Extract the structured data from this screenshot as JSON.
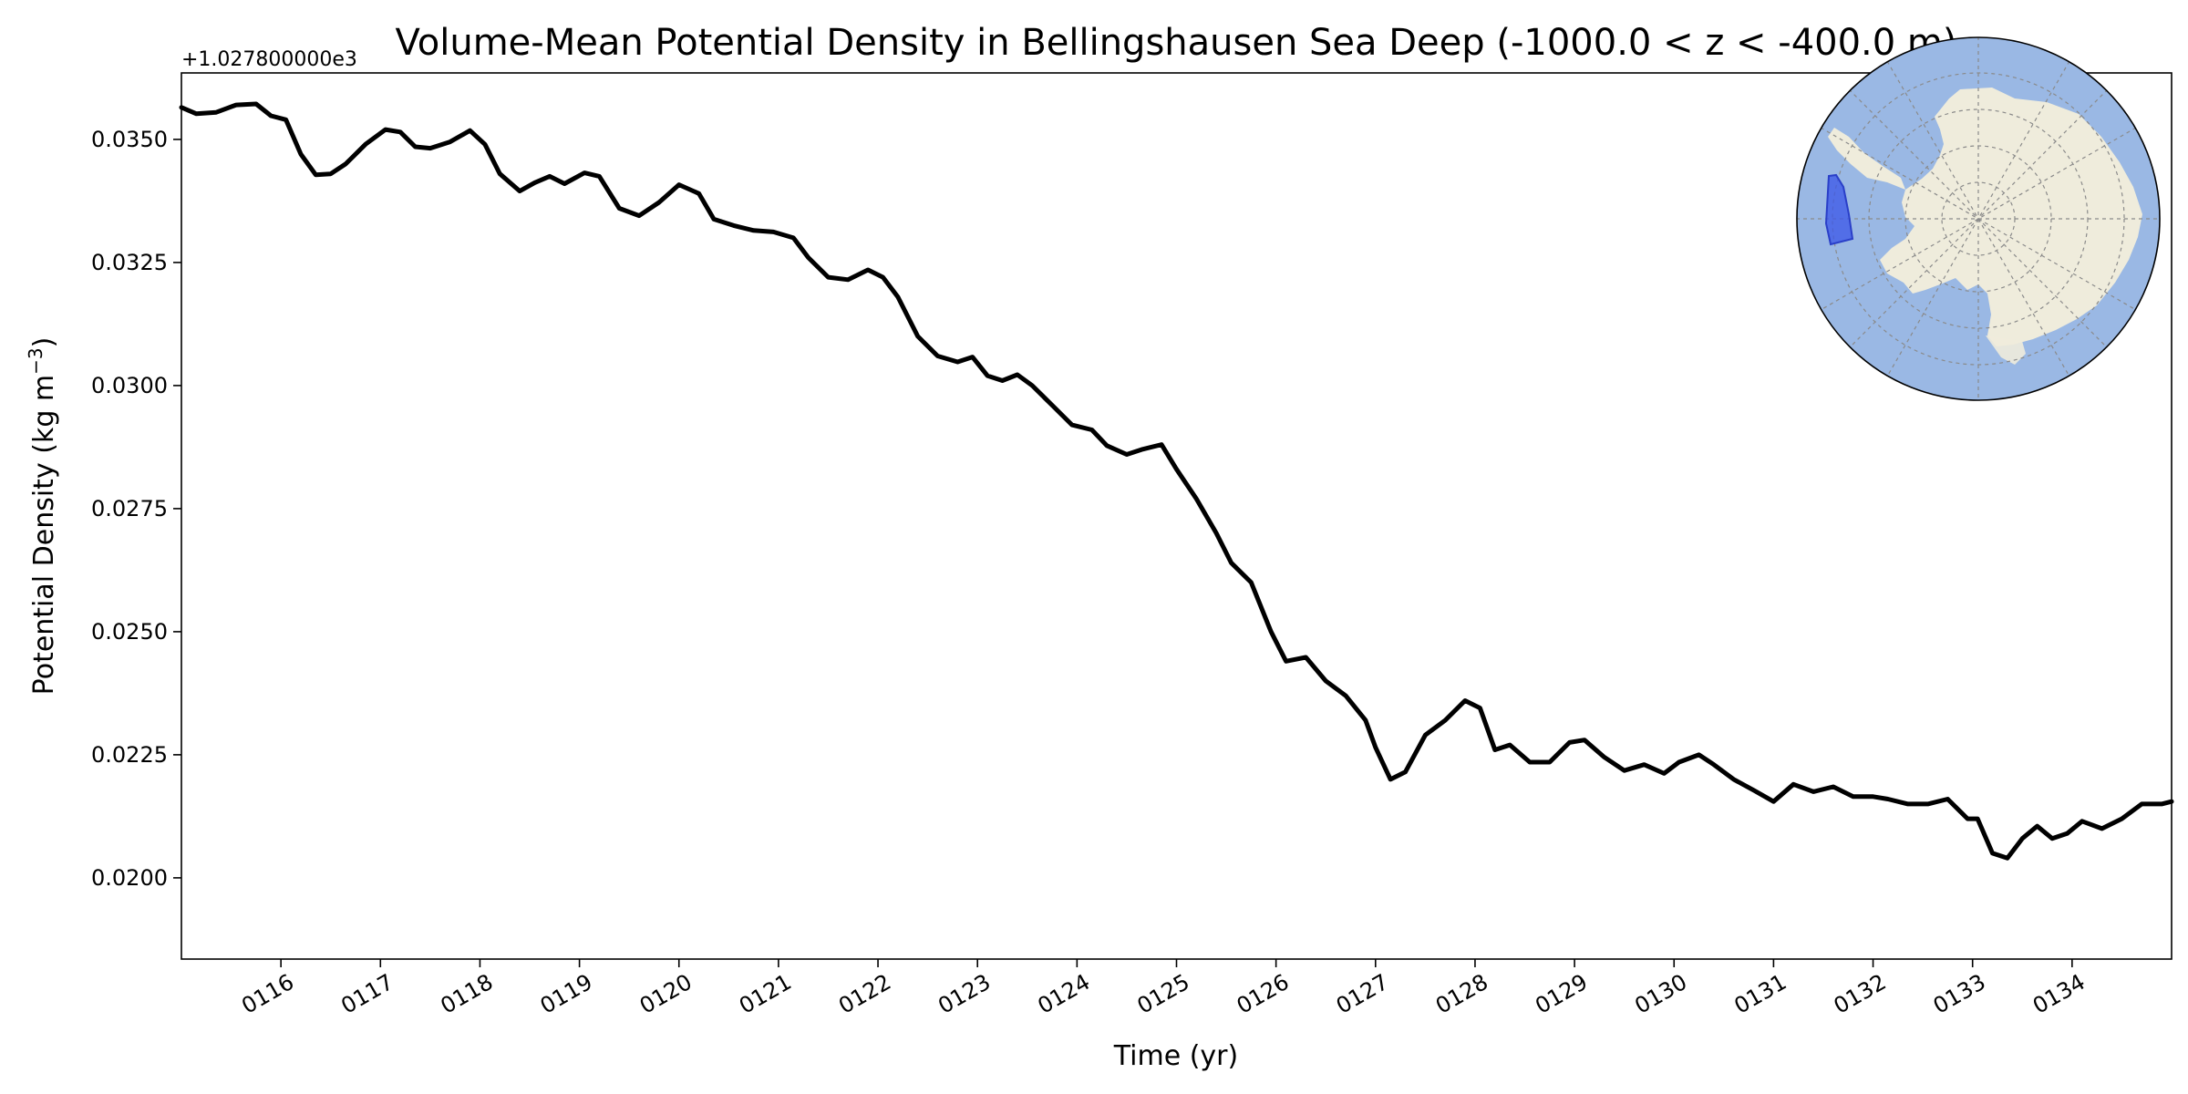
{
  "chart_data": {
    "type": "line",
    "title": "Volume-Mean Potential Density in Bellingshausen Sea Deep (-1000.0 < z < -400.0 m)",
    "xlabel": "Time (yr)",
    "ylabel_main": "Potential Density (kg m",
    "ylabel_sup": "−3",
    "ylabel_close": ")",
    "offset_text": "+1.027800000e3",
    "xlim": [
      115.0,
      135.0
    ],
    "ylim": [
      0.01835,
      0.03635
    ],
    "x_ticks": [
      {
        "value": 116,
        "label": "0116"
      },
      {
        "value": 117,
        "label": "0117"
      },
      {
        "value": 118,
        "label": "0118"
      },
      {
        "value": 119,
        "label": "0119"
      },
      {
        "value": 120,
        "label": "0120"
      },
      {
        "value": 121,
        "label": "0121"
      },
      {
        "value": 122,
        "label": "0122"
      },
      {
        "value": 123,
        "label": "0123"
      },
      {
        "value": 124,
        "label": "0124"
      },
      {
        "value": 125,
        "label": "0125"
      },
      {
        "value": 126,
        "label": "0126"
      },
      {
        "value": 127,
        "label": "0127"
      },
      {
        "value": 128,
        "label": "0128"
      },
      {
        "value": 129,
        "label": "0129"
      },
      {
        "value": 130,
        "label": "0130"
      },
      {
        "value": 131,
        "label": "0131"
      },
      {
        "value": 132,
        "label": "0132"
      },
      {
        "value": 133,
        "label": "0133"
      },
      {
        "value": 134,
        "label": "0134"
      }
    ],
    "y_ticks": [
      {
        "value": 0.02,
        "label": "0.0200"
      },
      {
        "value": 0.0225,
        "label": "0.0225"
      },
      {
        "value": 0.025,
        "label": "0.0250"
      },
      {
        "value": 0.0275,
        "label": "0.0275"
      },
      {
        "value": 0.03,
        "label": "0.0300"
      },
      {
        "value": 0.0325,
        "label": "0.0325"
      },
      {
        "value": 0.035,
        "label": "0.0350"
      }
    ],
    "series": [
      {
        "name": "Bellingshausen Sea Deep",
        "color": "#000000",
        "points": [
          [
            115.0,
            0.03565
          ],
          [
            115.15,
            0.03552
          ],
          [
            115.35,
            0.03555
          ],
          [
            115.55,
            0.0357
          ],
          [
            115.75,
            0.03572
          ],
          [
            115.9,
            0.03548
          ],
          [
            116.05,
            0.0354
          ],
          [
            116.2,
            0.0347
          ],
          [
            116.35,
            0.03428
          ],
          [
            116.5,
            0.0343
          ],
          [
            116.65,
            0.0345
          ],
          [
            116.85,
            0.0349
          ],
          [
            117.05,
            0.0352
          ],
          [
            117.2,
            0.03515
          ],
          [
            117.35,
            0.03485
          ],
          [
            117.5,
            0.03482
          ],
          [
            117.7,
            0.03495
          ],
          [
            117.9,
            0.03518
          ],
          [
            118.05,
            0.0349
          ],
          [
            118.2,
            0.0343
          ],
          [
            118.4,
            0.03395
          ],
          [
            118.55,
            0.03412
          ],
          [
            118.7,
            0.03425
          ],
          [
            118.85,
            0.0341
          ],
          [
            119.05,
            0.03432
          ],
          [
            119.2,
            0.03425
          ],
          [
            119.4,
            0.0336
          ],
          [
            119.6,
            0.03345
          ],
          [
            119.8,
            0.03372
          ],
          [
            120.0,
            0.03408
          ],
          [
            120.2,
            0.0339
          ],
          [
            120.35,
            0.03338
          ],
          [
            120.55,
            0.03325
          ],
          [
            120.75,
            0.03315
          ],
          [
            120.95,
            0.03312
          ],
          [
            121.15,
            0.033
          ],
          [
            121.3,
            0.0326
          ],
          [
            121.5,
            0.0322
          ],
          [
            121.7,
            0.03215
          ],
          [
            121.9,
            0.03235
          ],
          [
            122.05,
            0.0322
          ],
          [
            122.2,
            0.0318
          ],
          [
            122.4,
            0.031
          ],
          [
            122.6,
            0.0306
          ],
          [
            122.8,
            0.03048
          ],
          [
            122.95,
            0.03058
          ],
          [
            123.1,
            0.0302
          ],
          [
            123.25,
            0.0301
          ],
          [
            123.4,
            0.03022
          ],
          [
            123.55,
            0.03
          ],
          [
            123.75,
            0.0296
          ],
          [
            123.95,
            0.0292
          ],
          [
            124.15,
            0.0291
          ],
          [
            124.3,
            0.02878
          ],
          [
            124.5,
            0.0286
          ],
          [
            124.65,
            0.0287
          ],
          [
            124.85,
            0.0288
          ],
          [
            125.0,
            0.0283
          ],
          [
            125.2,
            0.0277
          ],
          [
            125.4,
            0.027
          ],
          [
            125.55,
            0.0264
          ],
          [
            125.75,
            0.026
          ],
          [
            125.95,
            0.025
          ],
          [
            126.1,
            0.0244
          ],
          [
            126.3,
            0.02448
          ],
          [
            126.5,
            0.024
          ],
          [
            126.7,
            0.0237
          ],
          [
            126.9,
            0.0232
          ],
          [
            127.0,
            0.02265
          ],
          [
            127.15,
            0.022
          ],
          [
            127.3,
            0.02215
          ],
          [
            127.5,
            0.0229
          ],
          [
            127.7,
            0.0232
          ],
          [
            127.9,
            0.0236
          ],
          [
            128.05,
            0.02345
          ],
          [
            128.2,
            0.0226
          ],
          [
            128.35,
            0.0227
          ],
          [
            128.55,
            0.02235
          ],
          [
            128.75,
            0.02235
          ],
          [
            128.95,
            0.02275
          ],
          [
            129.1,
            0.0228
          ],
          [
            129.3,
            0.02245
          ],
          [
            129.5,
            0.02218
          ],
          [
            129.7,
            0.0223
          ],
          [
            129.9,
            0.02212
          ],
          [
            130.05,
            0.02235
          ],
          [
            130.25,
            0.0225
          ],
          [
            130.4,
            0.0223
          ],
          [
            130.6,
            0.022
          ],
          [
            130.8,
            0.02178
          ],
          [
            131.0,
            0.02155
          ],
          [
            131.2,
            0.0219
          ],
          [
            131.4,
            0.02175
          ],
          [
            131.6,
            0.02185
          ],
          [
            131.8,
            0.02165
          ],
          [
            132.0,
            0.02165
          ],
          [
            132.15,
            0.0216
          ],
          [
            132.35,
            0.0215
          ],
          [
            132.55,
            0.0215
          ],
          [
            132.75,
            0.0216
          ],
          [
            132.95,
            0.0212
          ],
          [
            133.05,
            0.0212
          ],
          [
            133.2,
            0.0205
          ],
          [
            133.35,
            0.0204
          ],
          [
            133.5,
            0.0208
          ],
          [
            133.65,
            0.02105
          ],
          [
            133.8,
            0.0208
          ],
          [
            133.95,
            0.0209
          ],
          [
            134.1,
            0.02115
          ],
          [
            134.3,
            0.021
          ],
          [
            134.5,
            0.0212
          ],
          [
            134.7,
            0.0215
          ],
          [
            134.9,
            0.0215
          ],
          [
            135.0,
            0.02155
          ]
        ]
      }
    ]
  },
  "inset_map": {
    "region": "Bellingshausen Sea",
    "ocean_color": "#9ab8e4",
    "land_color": "#efecdc",
    "region_color": "#3a56e8"
  }
}
